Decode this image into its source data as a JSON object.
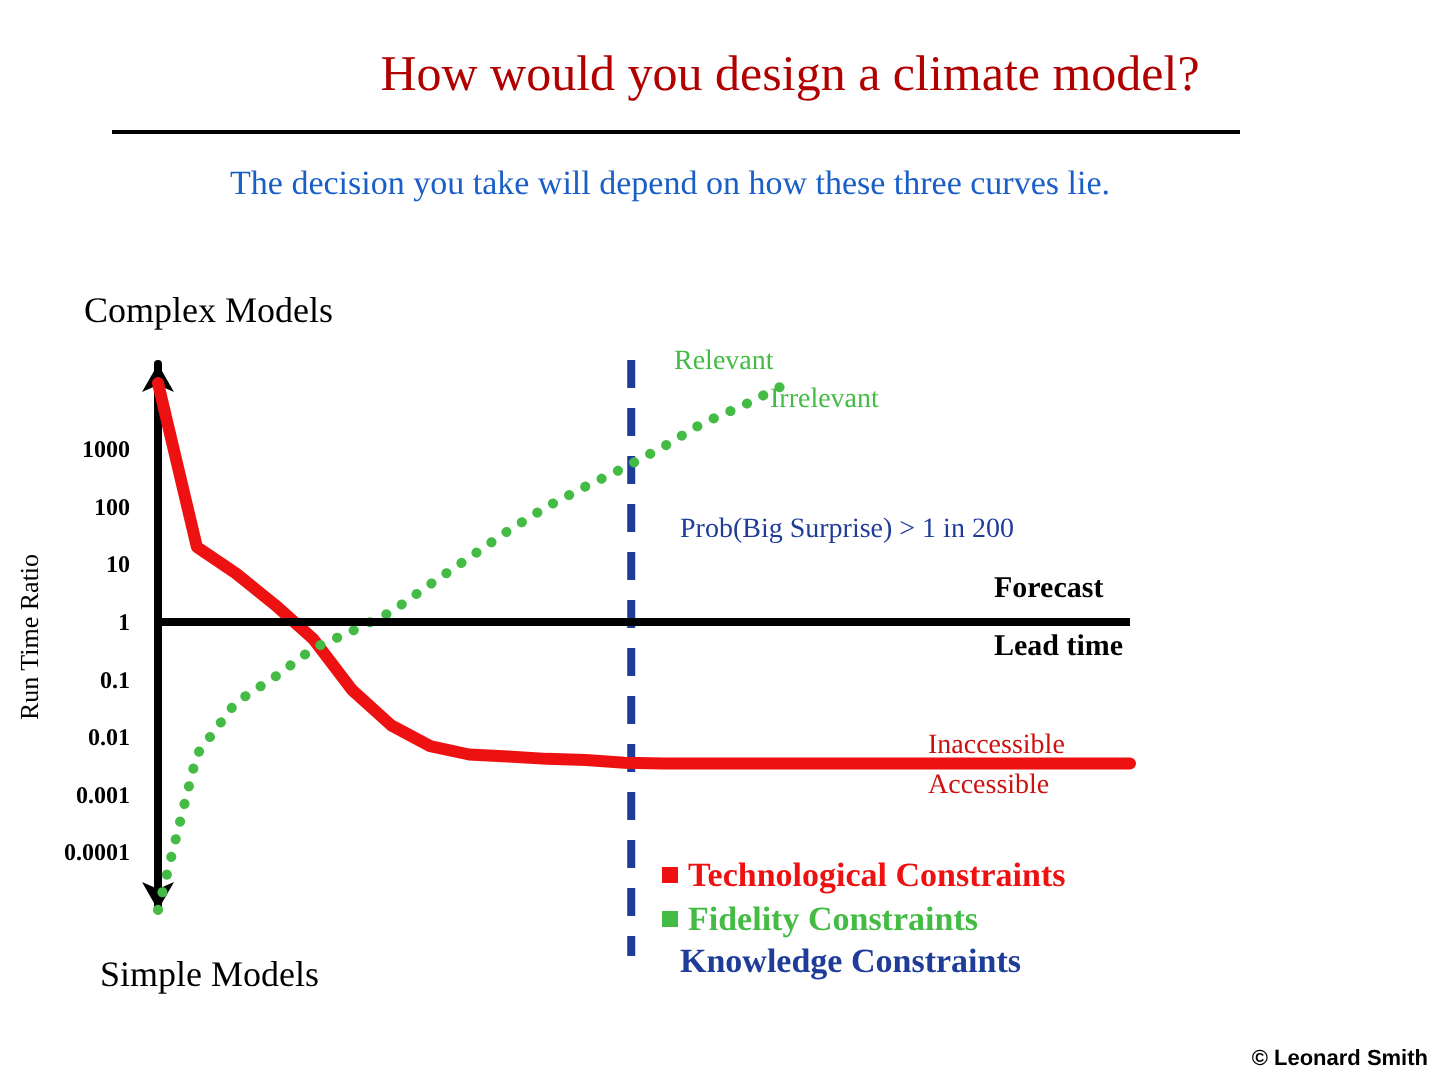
{
  "chart_data": {
    "type": "line",
    "title": "How would you design a climate model?",
    "subtitle": "The decision you take will depend on how these three curves lie.",
    "ylabel": "Run Time Ratio",
    "log": "y",
    "categories": [
      null,
      null,
      null,
      null,
      null,
      null,
      null,
      null,
      null,
      null,
      null,
      null,
      null,
      null,
      null,
      null,
      null,
      null,
      null,
      null,
      null,
      null,
      null,
      null,
      null,
      null
    ],
    "ylim": [
      1e-05,
      30000
    ],
    "yticks": [
      0.0001,
      0.001,
      0.01,
      0.1,
      1,
      10,
      100,
      1000
    ],
    "tick_labels": "y",
    "grid": false,
    "legend": "bottom",
    "marker": "none",
    "series": [
      {
        "name": "Technological Constraints",
        "color": "#ee1111",
        "line_style": "solid",
        "values": [
          14000,
          20,
          7,
          2,
          0.5,
          0.065,
          0.016,
          0.007,
          0.005,
          0.0046,
          0.0042,
          0.004,
          0.0036,
          0.0035,
          0.0035,
          0.0035,
          0.0035,
          0.0035,
          0.0035,
          0.0035,
          0.0035,
          0.0035,
          0.0035,
          0.0035,
          0.0035,
          0.0035
        ]
      },
      {
        "name": "Fidelity Constraints",
        "color": "#44bb44",
        "line_style": "dotted",
        "values": [
          1e-05,
          0.005,
          0.04,
          0.11,
          0.35,
          0.7,
          1.5,
          4.5,
          13,
          38,
          100,
          225,
          480,
          1100,
          2800,
          5500,
          12000,
          null,
          null,
          null,
          null,
          null,
          null,
          null,
          null,
          null
        ]
      }
    ],
    "ref_lines": [
      {
        "axis": "x",
        "label": "Knowledge Constraints",
        "color": "#1f3c99",
        "line_style": "dashed"
      },
      {
        "axis": "y",
        "value": 1,
        "color": "#000000",
        "line_style": "solid"
      }
    ],
    "annotations": [
      "Complex Models",
      "Simple Models",
      "Prob(Big Surprise) > 1 in 200",
      "Forecast",
      "Lead time",
      "Relevant",
      "Irrelevant",
      "Inaccessible",
      "Accessible",
      "© Leonard Smith"
    ]
  }
}
